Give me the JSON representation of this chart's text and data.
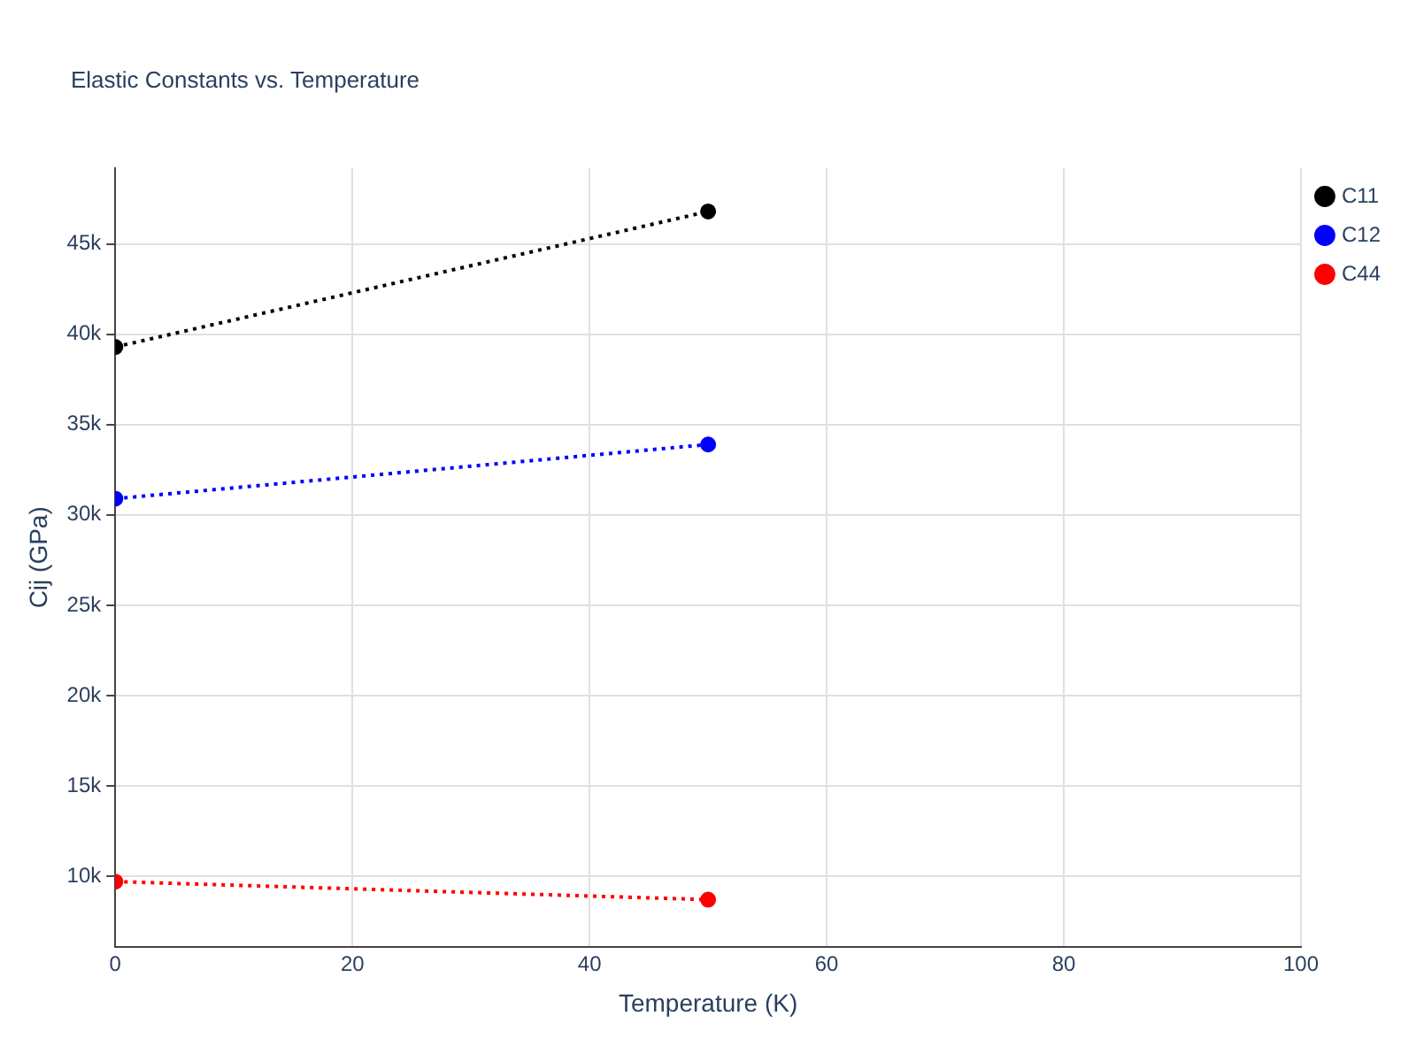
{
  "chart_data": {
    "type": "line",
    "title": "Elastic Constants vs. Temperature",
    "xlabel": "Temperature (K)",
    "ylabel": "Cij (GPa)",
    "x": [
      0,
      50
    ],
    "series": [
      {
        "name": "C11",
        "color": "#000000",
        "values": [
          39300,
          46800
        ]
      },
      {
        "name": "C12",
        "color": "#0000ff",
        "values": [
          30900,
          33900
        ]
      },
      {
        "name": "C44",
        "color": "#ff0000",
        "values": [
          9700,
          8700
        ]
      }
    ],
    "xlim": [
      0,
      100
    ],
    "xticks": [
      0,
      20,
      40,
      60,
      80,
      100
    ],
    "ylim": [
      6100,
      49200
    ],
    "yticks": [
      {
        "value": 10000,
        "label": "10k"
      },
      {
        "value": 15000,
        "label": "15k"
      },
      {
        "value": 20000,
        "label": "20k"
      },
      {
        "value": 25000,
        "label": "25k"
      },
      {
        "value": 30000,
        "label": "30k"
      },
      {
        "value": 35000,
        "label": "35k"
      },
      {
        "value": 40000,
        "label": "40k"
      },
      {
        "value": 45000,
        "label": "45k"
      }
    ],
    "grid": true,
    "legend": "top right",
    "marker": "circle",
    "line_style": "dotted"
  }
}
